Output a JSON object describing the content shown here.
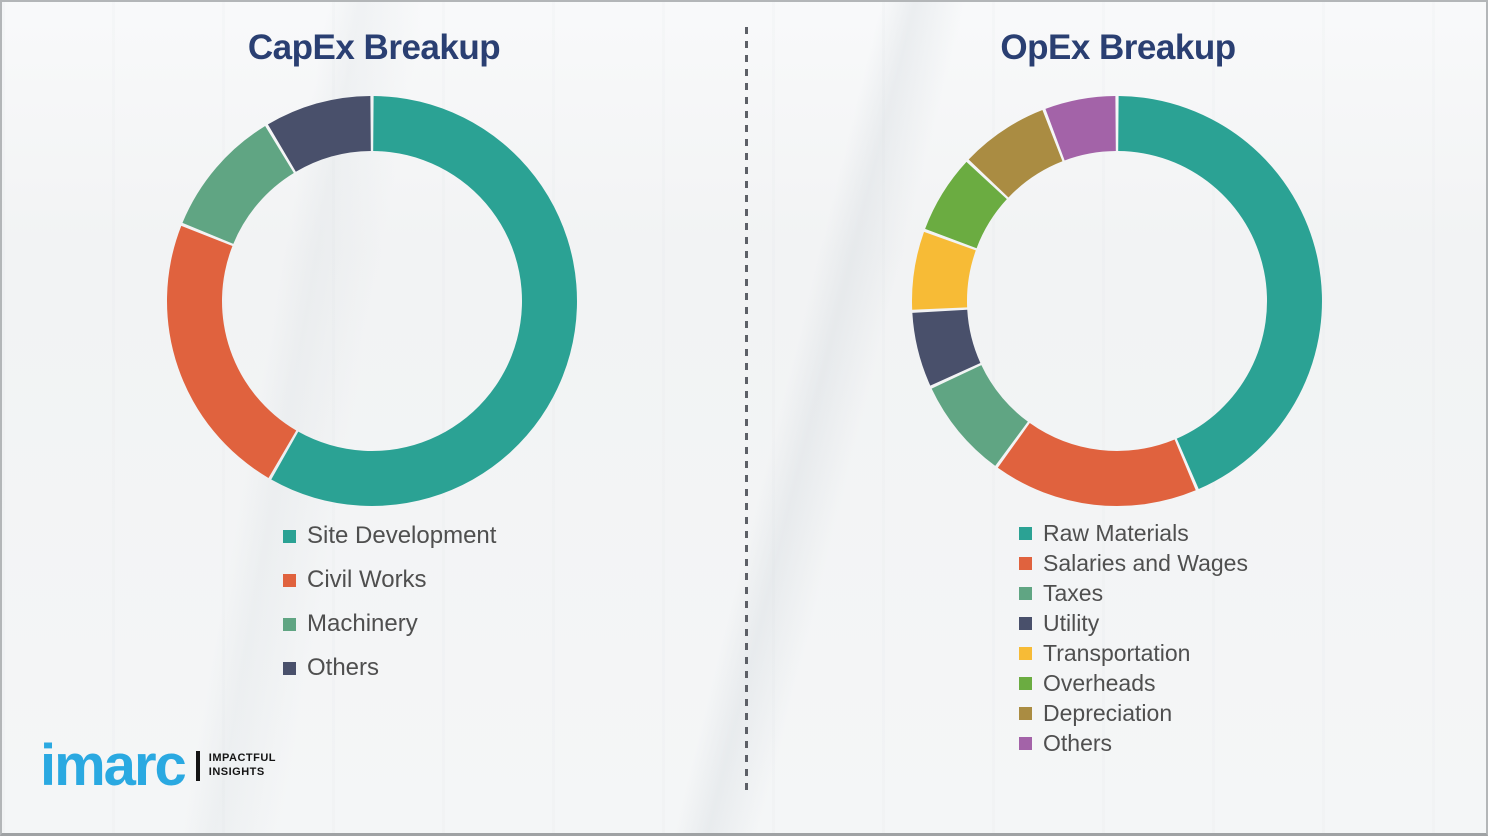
{
  "page": {
    "background_color": "#f2f3f4",
    "border_color": "#b3b6b8",
    "divider": "vertical-dashed-line",
    "divider_color": "#5d6067"
  },
  "chart_data": [
    {
      "type": "donut",
      "title": "CapEx Breakup",
      "title_color": "#2A3F72",
      "categories": [
        "Site Development",
        "Civil Works",
        "Machinery",
        "Others"
      ],
      "values": [
        58.3,
        22.8,
        10.3,
        8.6
      ],
      "unit": "percent (estimated from arc angles, no data labels shown)",
      "segment_degrees": [
        210,
        82,
        37,
        31
      ],
      "colors": [
        "#2BA294",
        "#E0623E",
        "#60A583",
        "#49506B"
      ],
      "start_angle": "12 o'clock, clockwise",
      "legend_position": "below chart, left aligned"
    },
    {
      "type": "donut",
      "title": "OpEx Breakup",
      "title_color": "#2A3F72",
      "categories": [
        "Raw Materials",
        "Salaries and Wages",
        "Taxes",
        "Utility",
        "Transportation",
        "Overheads",
        "Depreciation",
        "Others"
      ],
      "values": [
        43.6,
        16.4,
        8.1,
        6.1,
        6.4,
        6.4,
        7.2,
        5.8
      ],
      "unit": "percent (estimated from arc angles, no data labels shown)",
      "segment_degrees": [
        157,
        59,
        29,
        22,
        23,
        23,
        26,
        21
      ],
      "colors": [
        "#2BA294",
        "#E0623E",
        "#60A583",
        "#49506B",
        "#F7BB36",
        "#6BAC41",
        "#AA8C42",
        "#A363A8"
      ],
      "start_angle": "12 o'clock, clockwise",
      "legend_position": "below chart, left aligned"
    }
  ],
  "branding": {
    "logo_text": "imarc",
    "logo_color": "#2AA9E1",
    "tagline_line1": "IMPACTFUL",
    "tagline_line2": "INSIGHTS",
    "tagline_color": "#141414"
  }
}
